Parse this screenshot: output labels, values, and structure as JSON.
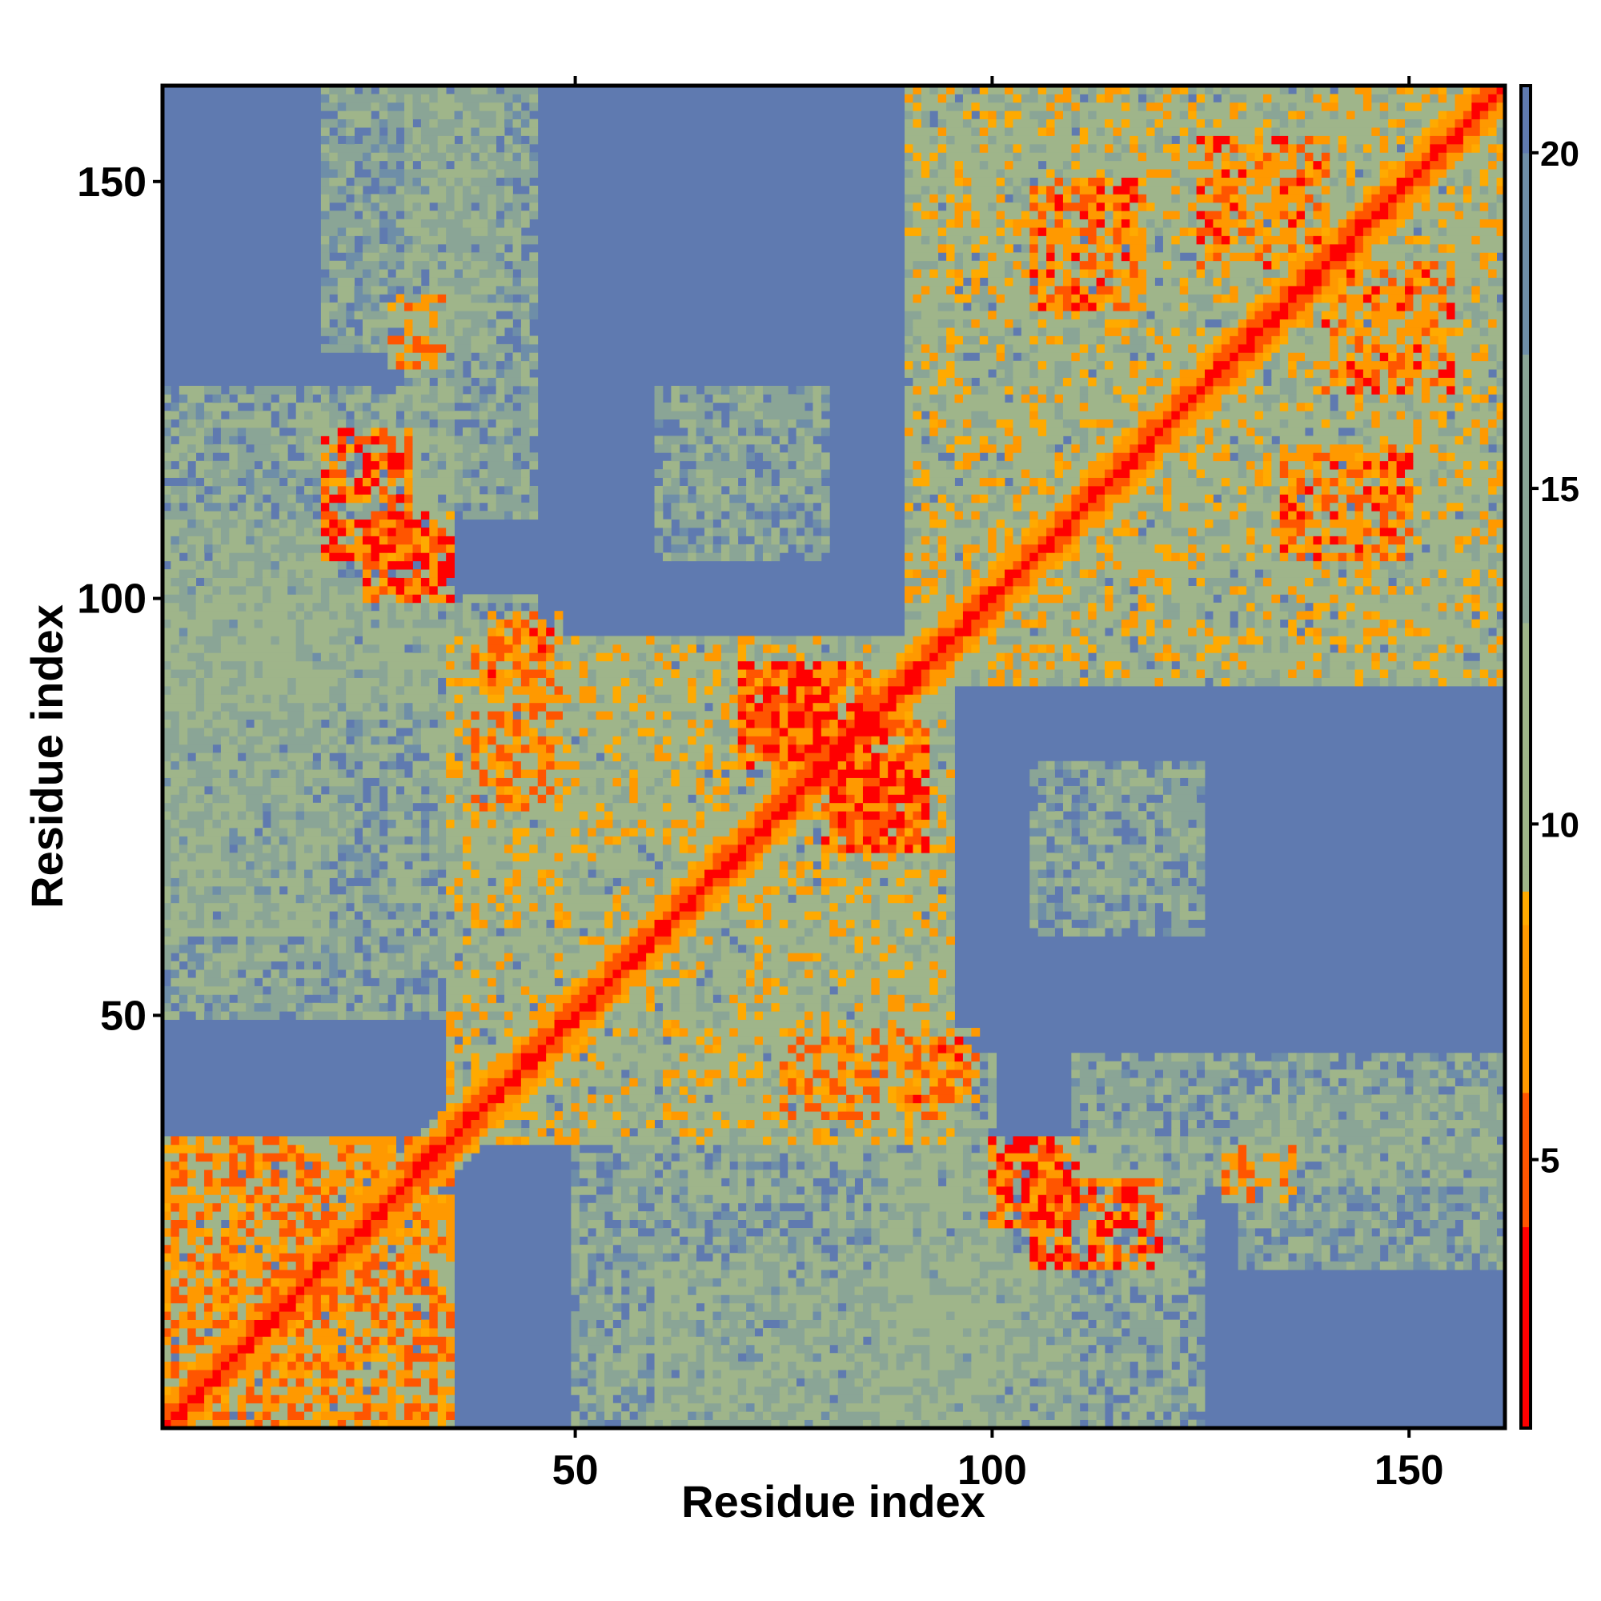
{
  "chart_data": {
    "type": "heatmap",
    "title": "",
    "xlabel": "Residue index",
    "ylabel": "Residue index",
    "n_residues": 161,
    "xlim": [
      1,
      161
    ],
    "ylim": [
      1,
      161
    ],
    "x_ticks": [
      50,
      100,
      150
    ],
    "y_ticks": [
      50,
      100,
      150
    ],
    "colorbar_ticks": [
      5,
      10,
      15,
      20
    ],
    "colorbar_range": [
      1,
      21
    ],
    "colorscale": [
      {
        "value": 1,
        "color": "#ff0000"
      },
      {
        "value": 4,
        "color": "#ff5500"
      },
      {
        "value": 6,
        "color": "#ff9900"
      },
      {
        "value": 8.5,
        "color": "#ffaa00"
      },
      {
        "value": 9,
        "color": "#9fb58a"
      },
      {
        "value": 13,
        "color": "#8aa596"
      },
      {
        "value": 17,
        "color": "#6e8ea8"
      },
      {
        "value": 20,
        "color": "#5f7ab0"
      },
      {
        "value": 21,
        "color": "#0000ff"
      }
    ],
    "background_value": 21,
    "cap_value": 21,
    "diagonal_band": {
      "value_at_zero_offset": 2,
      "width": 4
    },
    "contact_regions": [
      {
        "i": [
          1,
          35
        ],
        "j": [
          1,
          35
        ],
        "value": 9
      },
      {
        "i": [
          35,
          95
        ],
        "j": [
          35,
          95
        ],
        "value": 12
      },
      {
        "i": [
          90,
          161
        ],
        "j": [
          90,
          161
        ],
        "value": 12
      },
      {
        "i": [
          38,
          48
        ],
        "j": [
          75,
          95
        ],
        "value": 8
      },
      {
        "i": [
          20,
          30
        ],
        "j": [
          105,
          120
        ],
        "value": 6
      },
      {
        "i": [
          40,
          48
        ],
        "j": [
          90,
          98
        ],
        "value": 7
      },
      {
        "i": [
          28,
          34
        ],
        "j": [
          128,
          136
        ],
        "value": 8
      },
      {
        "i": [
          1,
          35
        ],
        "j": [
          50,
          125
        ],
        "value": 14
      },
      {
        "i": [
          60,
          80
        ],
        "j": [
          105,
          125
        ],
        "value": 14
      },
      {
        "i": [
          73,
          85
        ],
        "j": [
          82,
          92
        ],
        "value": 6
      },
      {
        "i": [
          80,
          92
        ],
        "j": [
          70,
          80
        ],
        "value": 6
      },
      {
        "i": [
          105,
          118
        ],
        "j": [
          135,
          150
        ],
        "value": 7
      },
      {
        "i": [
          125,
          140
        ],
        "j": [
          140,
          155
        ],
        "value": 7
      },
      {
        "i": [
          100,
          110
        ],
        "j": [
          25,
          35
        ],
        "value": 6
      },
      {
        "i": [
          88,
          100
        ],
        "j": [
          1,
          45
        ],
        "value": 13
      },
      {
        "i": [
          110,
          161
        ],
        "j": [
          30,
          45
        ],
        "value": 14
      },
      {
        "i": [
          60,
          110
        ],
        "j": [
          1,
          20
        ],
        "value": 14
      },
      {
        "i": [
          130,
          161
        ],
        "j": [
          20,
          40
        ],
        "value": 15
      }
    ]
  }
}
